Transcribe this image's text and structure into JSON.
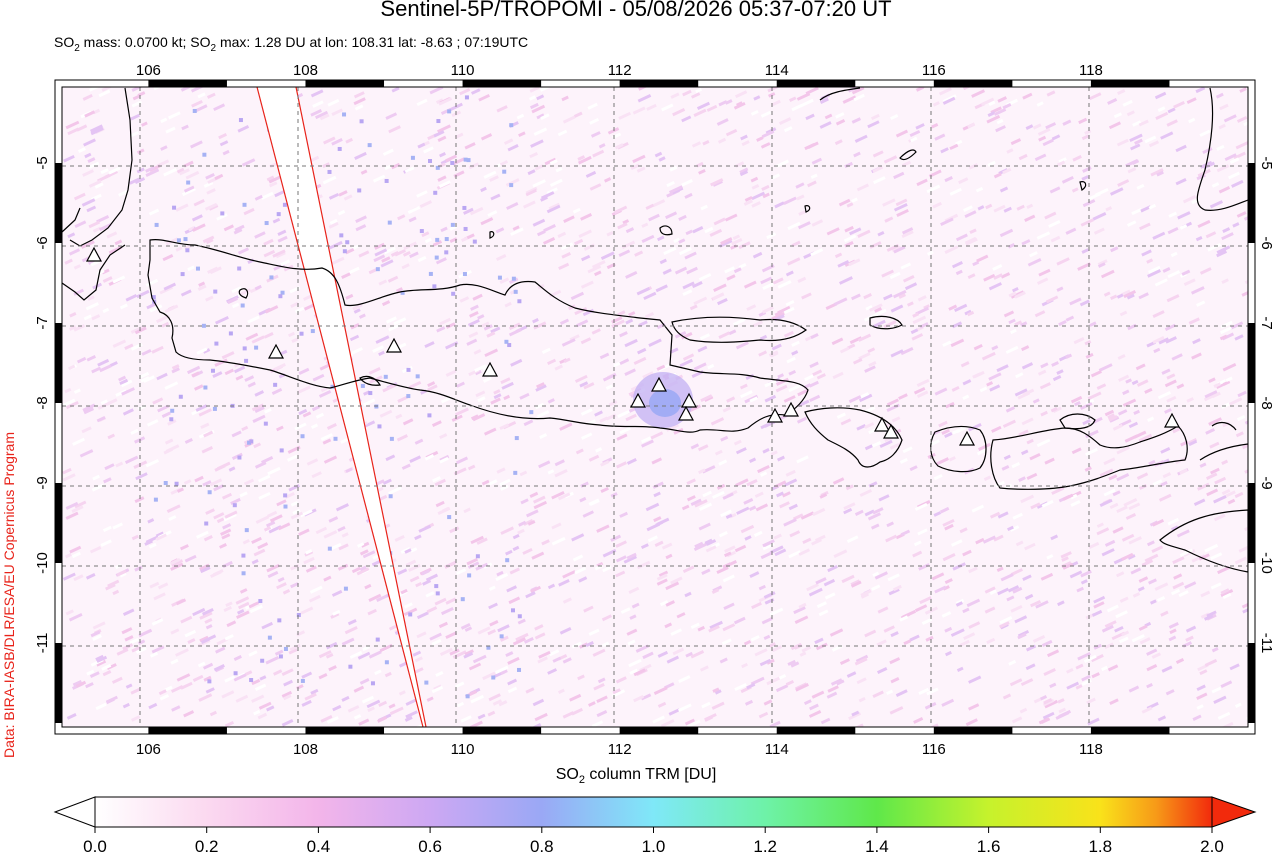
{
  "header": {
    "title": "Sentinel-5P/TROPOMI - 05/08/2026 05:37-07:20 UT",
    "subtitle_parts": {
      "mass_prefix": "SO",
      "mass_sub": "2",
      "mass_text": " mass: 0.0700 kt; SO",
      "max_sub": "2",
      "max_text": " max: 1.28 DU at lon: 108.31 lat: -8.63 ; 07:19UTC"
    }
  },
  "credit": "Data: BIRA-IASB/DLR/ESA/EU Copernicus Program",
  "map": {
    "lon_range": [
      104.9,
      120.0
    ],
    "lat_range": [
      -12.05,
      -4.05
    ],
    "lon_ticks": [
      "106",
      "108",
      "110",
      "112",
      "114",
      "116",
      "118"
    ],
    "lat_ticks": [
      "-5",
      "-6",
      "-7",
      "-8",
      "-9",
      "-10",
      "-11"
    ],
    "volcano_count": 14,
    "colors": {
      "coast": "#000000",
      "orbit_edge": "#e8231a",
      "grid": "#777777"
    }
  },
  "colorbar": {
    "label_prefix": "SO",
    "label_sub": "2",
    "label_suffix": " column TRM [DU]",
    "ticks": [
      "0.0",
      "0.2",
      "0.4",
      "0.6",
      "0.8",
      "1.0",
      "1.2",
      "1.4",
      "1.6",
      "1.8",
      "2.0"
    ],
    "colors": [
      "#ffffff",
      "#fbd9f0",
      "#f3b5ea",
      "#cda8f3",
      "#9aa8f5",
      "#7fe8f8",
      "#6ef2a8",
      "#5fe84a",
      "#c6f22c",
      "#f9e21a",
      "#f79a18",
      "#f22a0c"
    ]
  }
}
